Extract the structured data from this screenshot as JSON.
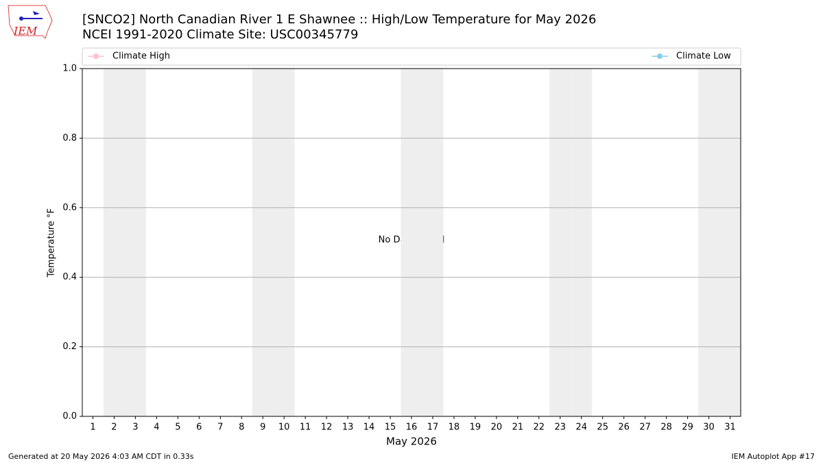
{
  "logo_text": "IEM",
  "footer": {
    "left": "Generated at 20 May 2026 4:03 AM CDT in 0.33s",
    "right": "IEM Autoplot App #17"
  },
  "chart_data": {
    "type": "line",
    "title": "[SNCO2] North Canadian River 1 E Shawnee :: High/Low Temperature for May 2026",
    "subtitle": "NCEI 1991-2020 Climate Site: USC00345779",
    "xlabel": "May 2026",
    "ylabel": "Temperature °F",
    "annotation": "No Data Found",
    "x": [
      1,
      2,
      3,
      4,
      5,
      6,
      7,
      8,
      9,
      10,
      11,
      12,
      13,
      14,
      15,
      16,
      17,
      18,
      19,
      20,
      21,
      22,
      23,
      24,
      25,
      26,
      27,
      28,
      29,
      30,
      31
    ],
    "xlim": [
      0.5,
      31.5
    ],
    "xticks": [
      1,
      2,
      3,
      4,
      5,
      6,
      7,
      8,
      9,
      10,
      11,
      12,
      13,
      14,
      15,
      16,
      17,
      18,
      19,
      20,
      21,
      22,
      23,
      24,
      25,
      26,
      27,
      28,
      29,
      30,
      31
    ],
    "ylim": [
      0,
      1
    ],
    "yticks": [
      {
        "value": 0,
        "label": "0.0"
      },
      0.2,
      0.4,
      0.6,
      0.8,
      {
        "value": 1,
        "label": "1.0"
      }
    ],
    "grid": true,
    "weekend_shading": "#eeeeee",
    "series": [
      {
        "name": "Climate High",
        "color": "#ffc0cb",
        "values": [
          null,
          null,
          null,
          null,
          null,
          null,
          null,
          null,
          null,
          null,
          null,
          null,
          null,
          null,
          null,
          null,
          null,
          null,
          null,
          null,
          null,
          null,
          null,
          null,
          null,
          null,
          null,
          null,
          null,
          null,
          null
        ]
      },
      {
        "name": "Climate Low",
        "color": "#87ceeb",
        "values": [
          null,
          null,
          null,
          null,
          null,
          null,
          null,
          null,
          null,
          null,
          null,
          null,
          null,
          null,
          null,
          null,
          null,
          null,
          null,
          null,
          null,
          null,
          null,
          null,
          null,
          null,
          null,
          null,
          null,
          null,
          null
        ]
      }
    ]
  }
}
